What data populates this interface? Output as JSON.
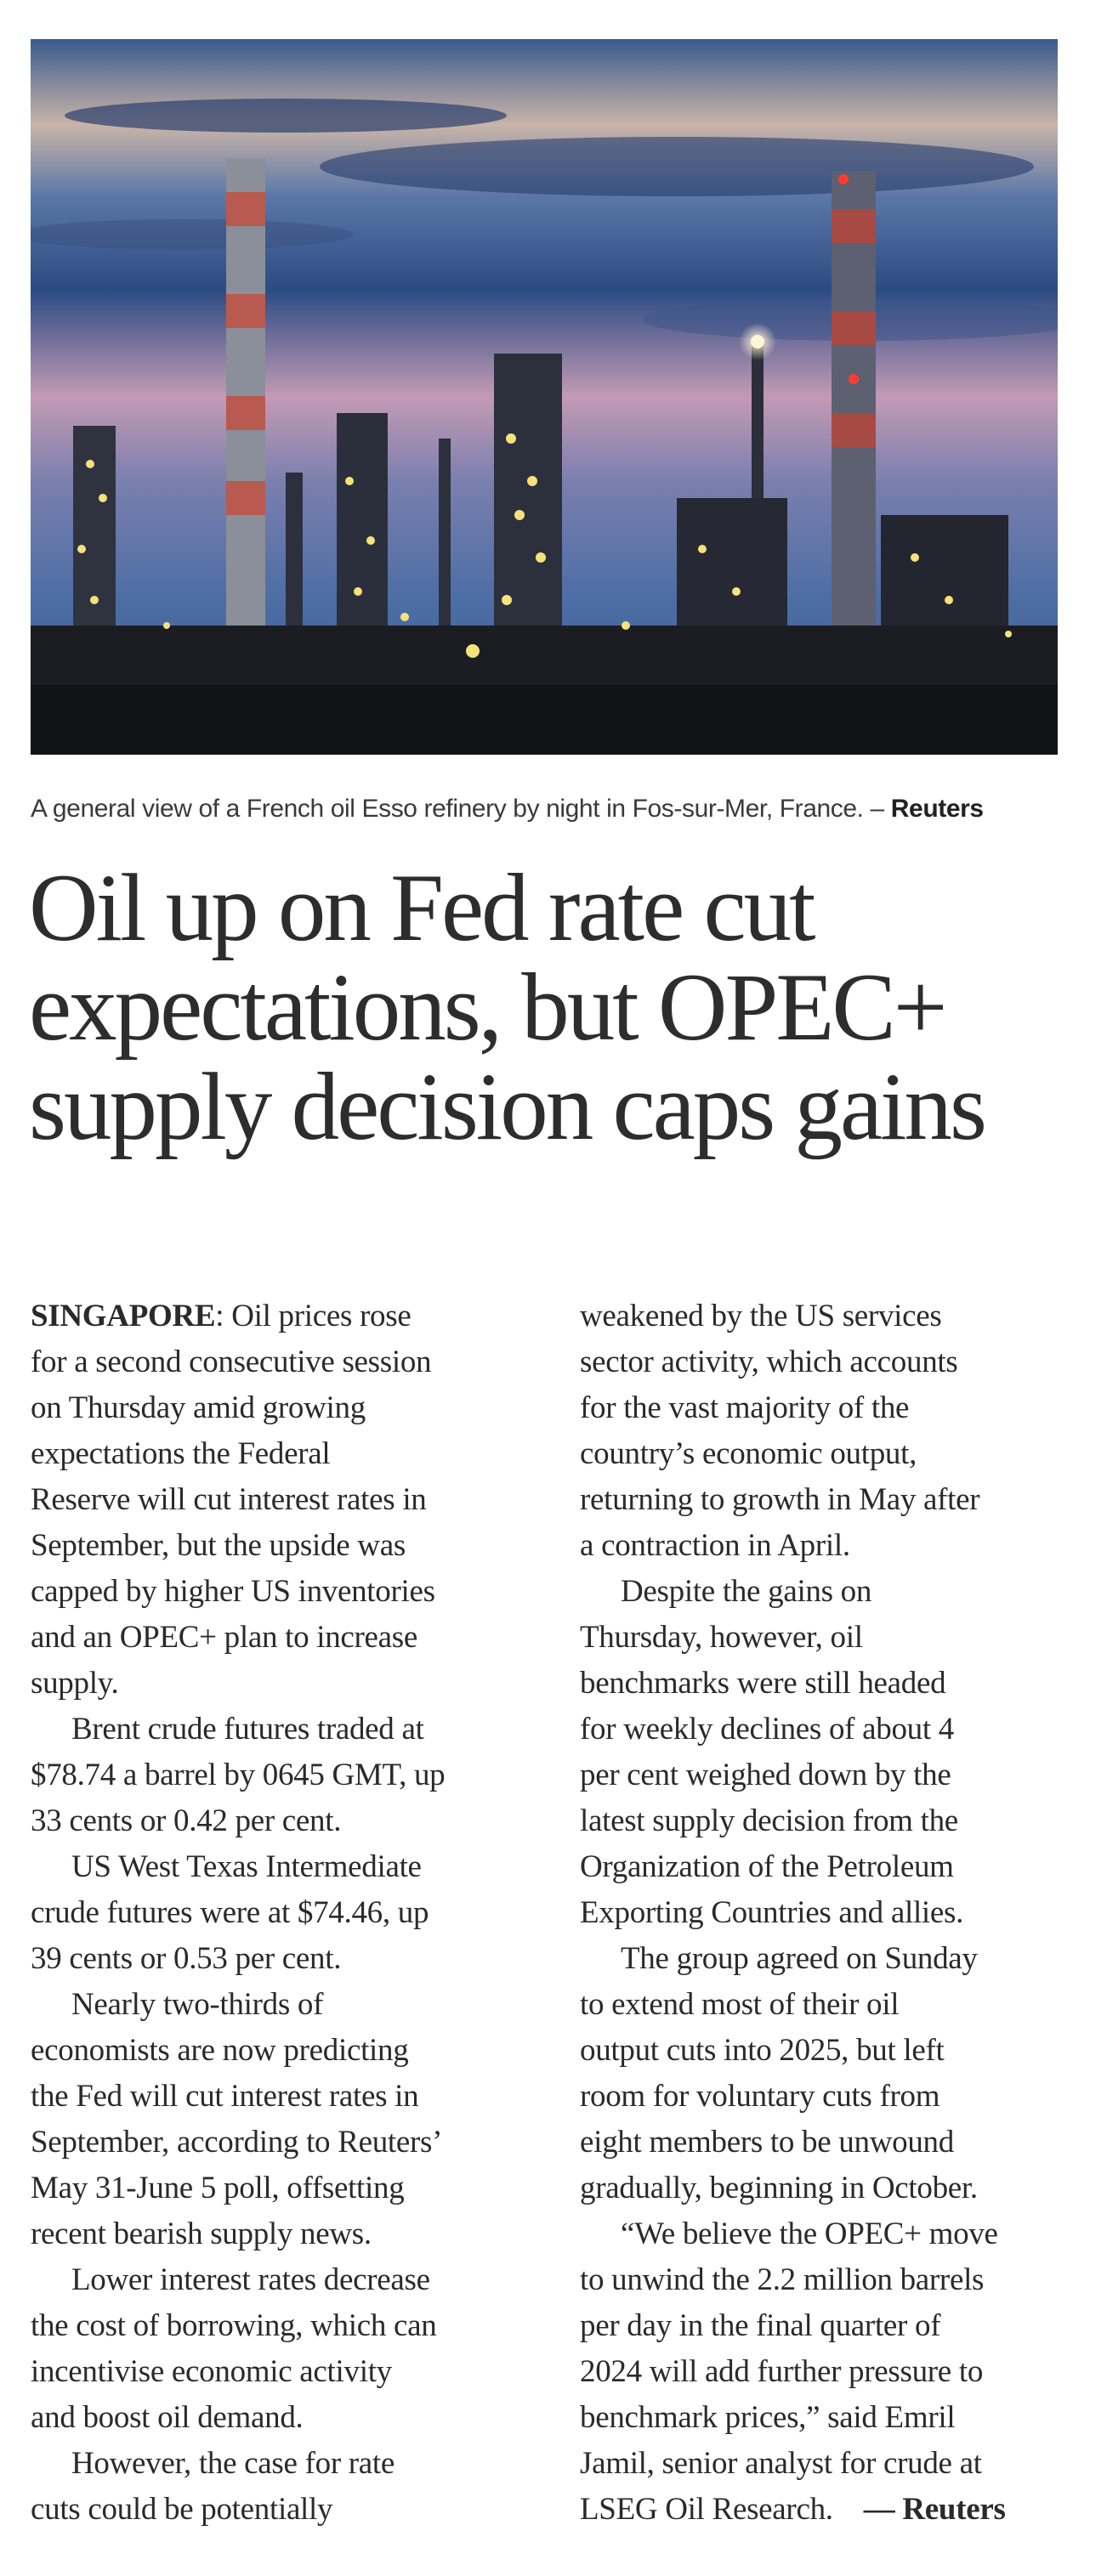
{
  "photo": {
    "alt": "A general view of a French oil Esso refinery by night in Fos-sur-Mer, France."
  },
  "caption": {
    "text": "A general view of a French oil Esso refinery by night in Fos-sur-Mer, France. – ",
    "credit": "Reuters"
  },
  "headline": {
    "lines": [
      "Oil up on Fed rate cut",
      "expectations, but OPEC+",
      "supply decision caps gains"
    ]
  },
  "article": {
    "dateline": "SINGAPORE",
    "signature": "— Reuters",
    "left_column": [
      ": Oil prices rose",
      "for a second consecutive session",
      "on Thursday amid growing",
      "expectations the Federal",
      "Reserve will cut interest rates in",
      "September, but the upside was",
      "capped by higher US inventories",
      "and an OPEC+ plan to increase",
      "supply.",
      "Brent crude futures traded at",
      "$78.74 a barrel by 0645 GMT, up",
      "33 cents or 0.42 per cent.",
      "US West Texas Intermediate",
      "crude futures were at $74.46, up",
      "39 cents or 0.53 per cent.",
      "Nearly two-thirds of",
      "economists are now predicting",
      "the Fed will cut interest rates in",
      "September, according to Reuters’",
      "May 31-June 5 poll, offsetting",
      "recent bearish supply news.",
      "Lower interest rates decrease",
      "the cost of borrowing, which can",
      "incentivise economic activity",
      "and boost oil demand.",
      "However, the case for rate",
      "cuts could be potentially"
    ],
    "right_column": [
      "weakened by the US services",
      "sector activity, which accounts",
      "for the vast majority of the",
      "country’s economic output,",
      "returning to growth in May after",
      "a contraction in April.",
      "Despite the gains on",
      "Thursday, however, oil",
      "benchmarks were still headed",
      "for weekly declines of about 4",
      "per cent weighed down by the",
      "latest supply decision from the",
      "Organization of the Petroleum",
      "Exporting Countries and allies.",
      "The group agreed on Sunday",
      "to extend most of their oil",
      "output cuts into 2025, but left",
      "room for voluntary cuts from",
      "eight members to be unwound",
      "gradually, beginning in October.",
      "“We believe the OPEC+ move",
      "to unwind the 2.2 million barrels",
      "per day in the final quarter of",
      "2024 will add further pressure to",
      "benchmark prices,” said Emril",
      "Jamil, senior analyst for crude at",
      "LSEG Oil Research."
    ]
  },
  "colors": {
    "sky_top": "#2f4f86",
    "sky_glow": "#c7a0b4",
    "ground": "#1a1b1f",
    "light_yellow": "#f5e27a",
    "stack_red": "#c0392b"
  }
}
